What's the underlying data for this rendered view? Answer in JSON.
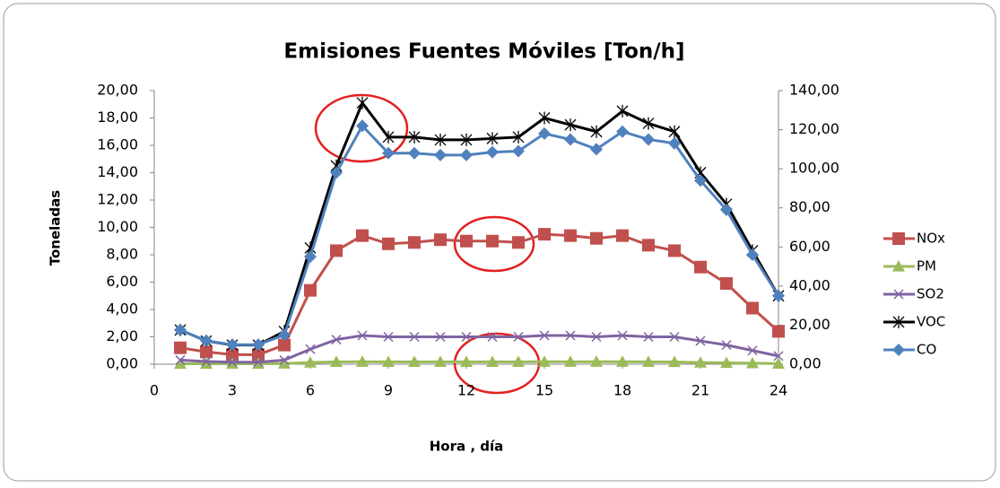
{
  "chart_data": {
    "type": "line",
    "title": "Emisiones  Fuentes Móviles [Ton/h]",
    "ylabel": "Toneladas",
    "xlabel": "Hora , día",
    "x": [
      1,
      2,
      3,
      4,
      5,
      6,
      7,
      8,
      9,
      10,
      11,
      12,
      13,
      14,
      15,
      16,
      17,
      18,
      19,
      20,
      21,
      22,
      23,
      24
    ],
    "xlim": [
      0,
      24
    ],
    "xticks": [
      0,
      3,
      6,
      9,
      12,
      15,
      18,
      21,
      24
    ],
    "ylim": [
      0,
      20
    ],
    "yticks": [
      {
        "value": 0,
        "label": "0,00"
      },
      {
        "value": 2,
        "label": "2,00"
      },
      {
        "value": 4,
        "label": "4,00"
      },
      {
        "value": 6,
        "label": "6,00"
      },
      {
        "value": 8,
        "label": "8,00"
      },
      {
        "value": 10,
        "label": "10,00"
      },
      {
        "value": 12,
        "label": "12,00"
      },
      {
        "value": 14,
        "label": "14,00"
      },
      {
        "value": 16,
        "label": "16,00"
      },
      {
        "value": 18,
        "label": "18,00"
      },
      {
        "value": 20,
        "label": "20,00"
      }
    ],
    "y2lim": [
      0,
      140
    ],
    "y2ticks": [
      {
        "value": 0,
        "label": "0,00"
      },
      {
        "value": 20,
        "label": "20,00"
      },
      {
        "value": 40,
        "label": "40,00"
      },
      {
        "value": 60,
        "label": "60,00"
      },
      {
        "value": 80,
        "label": "80,00"
      },
      {
        "value": 100,
        "label": "100,00"
      },
      {
        "value": 120,
        "label": "120,00"
      },
      {
        "value": 140,
        "label": "140,00"
      }
    ],
    "legend": "right",
    "series": [
      {
        "name": "NOx",
        "color": "#c0504d",
        "marker": "square",
        "values": [
          1.2,
          0.9,
          0.7,
          0.7,
          1.4,
          5.4,
          8.3,
          9.4,
          8.8,
          8.9,
          9.1,
          9.0,
          9.0,
          8.9,
          9.5,
          9.4,
          9.2,
          9.4,
          8.7,
          8.3,
          7.1,
          5.9,
          4.1,
          2.4
        ]
      },
      {
        "name": "PM",
        "color": "#9bbb59",
        "marker": "triangle",
        "values": [
          0.03,
          0.03,
          0.03,
          0.03,
          0.05,
          0.12,
          0.17,
          0.18,
          0.17,
          0.17,
          0.17,
          0.17,
          0.17,
          0.17,
          0.18,
          0.18,
          0.18,
          0.18,
          0.17,
          0.16,
          0.12,
          0.1,
          0.07,
          0.04
        ]
      },
      {
        "name": "SO2",
        "color": "#8064a2",
        "marker": "x",
        "values": [
          0.3,
          0.2,
          0.15,
          0.15,
          0.3,
          1.1,
          1.8,
          2.1,
          2.0,
          2.0,
          2.0,
          2.0,
          2.0,
          2.0,
          2.1,
          2.1,
          2.0,
          2.1,
          2.0,
          2.0,
          1.7,
          1.4,
          1.0,
          0.6
        ]
      },
      {
        "name": "VOC",
        "color": "#000000",
        "marker": "star",
        "values": [
          2.5,
          1.7,
          1.4,
          1.4,
          2.4,
          8.5,
          14.5,
          19.1,
          16.6,
          16.6,
          16.4,
          16.4,
          16.5,
          16.6,
          18.0,
          17.5,
          17.0,
          18.5,
          17.6,
          17.0,
          14.0,
          11.7,
          8.3,
          5.0
        ]
      },
      {
        "name": "CO",
        "color": "#4f81bd",
        "marker": "diamond",
        "axis": "y2",
        "values": [
          17.5,
          12,
          10,
          10,
          15,
          55,
          98,
          122,
          108,
          108,
          107,
          107,
          108.5,
          109,
          118,
          115,
          110,
          119,
          115,
          113,
          94,
          79,
          56,
          35
        ]
      }
    ]
  }
}
